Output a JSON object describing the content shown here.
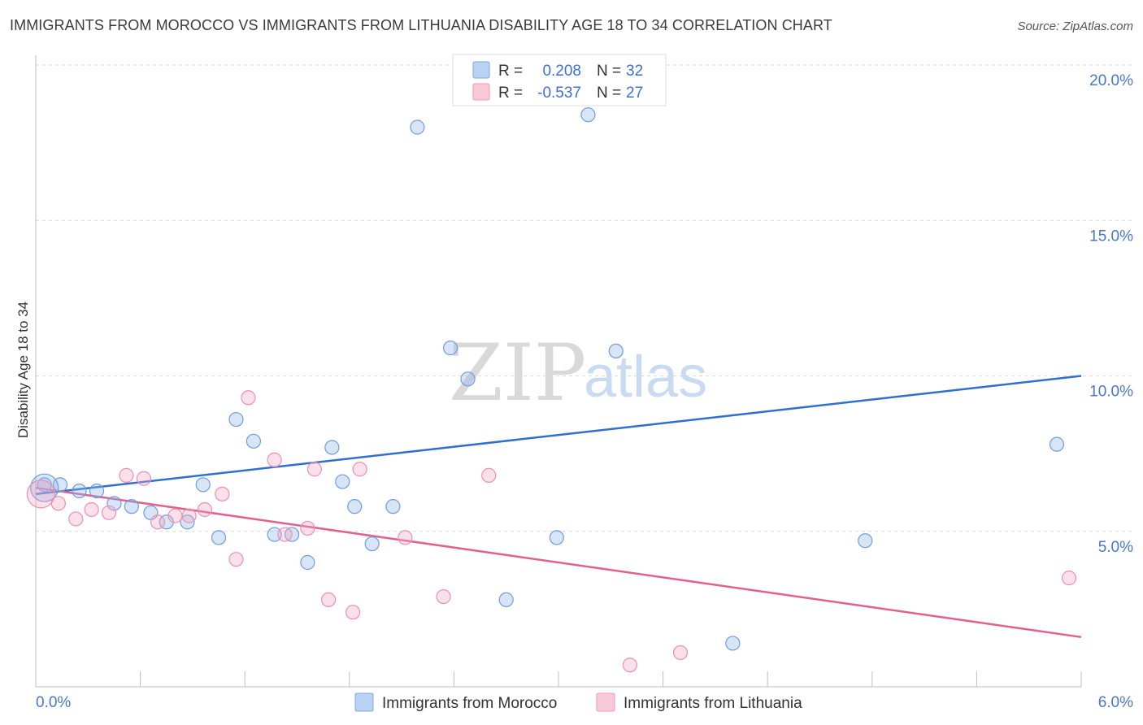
{
  "title": "IMMIGRANTS FROM MOROCCO VS IMMIGRANTS FROM LITHUANIA DISABILITY AGE 18 TO 34 CORRELATION CHART",
  "source": "Source: ZipAtlas.com",
  "colors": {
    "morocco": "#8fb4e8",
    "morocco_line": "#2f6fd0",
    "lithuania": "#f2a7bf",
    "lithuania_line": "#e0608e",
    "tick": "#4a78c8"
  },
  "legend": {
    "r_label": "R =",
    "n_label": "N =",
    "morocco_r": "0.208",
    "morocco_n": "32",
    "lithuania_r": "-0.537",
    "lithuania_n": "27"
  },
  "watermark": {
    "zip": "ZIP",
    "atlas": "atlas"
  },
  "chart_data": {
    "type": "scatter",
    "title": "IMMIGRANTS FROM MOROCCO VS IMMIGRANTS FROM LITHUANIA DISABILITY AGE 18 TO 34 CORRELATION CHART",
    "xlabel": "",
    "ylabel": "Disability Age 18 to 34",
    "xlim": [
      0,
      6
    ],
    "ylim": [
      0,
      20
    ],
    "x_tick_labels": [
      "0.0%",
      "6.0%"
    ],
    "y_ticks": [
      5,
      10,
      15,
      20
    ],
    "y_tick_labels": [
      "5.0%",
      "10.0%",
      "15.0%",
      "20.0%"
    ],
    "grid": true,
    "legend_position": "bottom",
    "series": [
      {
        "name": "Immigrants from Morocco",
        "r": 0.208,
        "n": 32,
        "trend": [
          [
            0,
            6.2
          ],
          [
            6,
            10.0
          ]
        ],
        "points": [
          [
            0.05,
            6.5
          ],
          [
            0.14,
            6.5
          ],
          [
            0.25,
            6.3
          ],
          [
            0.35,
            6.3
          ],
          [
            0.45,
            5.9
          ],
          [
            0.55,
            5.8
          ],
          [
            0.66,
            5.6
          ],
          [
            0.75,
            5.3
          ],
          [
            0.87,
            5.3
          ],
          [
            0.96,
            6.5
          ],
          [
            1.05,
            4.8
          ],
          [
            1.15,
            8.6
          ],
          [
            1.25,
            7.9
          ],
          [
            1.37,
            4.9
          ],
          [
            1.47,
            4.9
          ],
          [
            1.56,
            4.0
          ],
          [
            1.7,
            7.7
          ],
          [
            1.76,
            6.6
          ],
          [
            1.83,
            5.8
          ],
          [
            1.93,
            4.6
          ],
          [
            2.05,
            5.8
          ],
          [
            2.19,
            18.0
          ],
          [
            2.38,
            10.9
          ],
          [
            2.48,
            9.9
          ],
          [
            2.7,
            2.8
          ],
          [
            2.99,
            4.8
          ],
          [
            3.17,
            18.4
          ],
          [
            3.33,
            10.8
          ],
          [
            4.0,
            1.4
          ],
          [
            4.76,
            4.7
          ],
          [
            5.86,
            7.8
          ],
          [
            0.05,
            6.4
          ]
        ]
      },
      {
        "name": "Immigrants from Lithuania",
        "r": -0.537,
        "n": 27,
        "trend": [
          [
            0,
            6.4
          ],
          [
            6,
            1.6
          ]
        ],
        "points": [
          [
            0.03,
            6.2
          ],
          [
            0.13,
            5.9
          ],
          [
            0.23,
            5.4
          ],
          [
            0.32,
            5.7
          ],
          [
            0.42,
            5.6
          ],
          [
            0.52,
            6.8
          ],
          [
            0.62,
            6.7
          ],
          [
            0.7,
            5.3
          ],
          [
            0.8,
            5.5
          ],
          [
            0.88,
            5.5
          ],
          [
            0.97,
            5.7
          ],
          [
            1.07,
            6.2
          ],
          [
            1.15,
            4.1
          ],
          [
            1.22,
            9.3
          ],
          [
            1.37,
            7.3
          ],
          [
            1.43,
            4.9
          ],
          [
            1.56,
            5.1
          ],
          [
            1.6,
            7.0
          ],
          [
            1.68,
            2.8
          ],
          [
            1.82,
            2.4
          ],
          [
            1.86,
            7.0
          ],
          [
            2.12,
            4.8
          ],
          [
            2.34,
            2.9
          ],
          [
            2.6,
            6.8
          ],
          [
            3.41,
            0.7
          ],
          [
            3.7,
            1.1
          ],
          [
            5.93,
            3.5
          ]
        ]
      }
    ]
  },
  "bottom_legend": {
    "morocco_label": "Immigrants from Morocco",
    "lithuania_label": "Immigrants from Lithuania"
  }
}
